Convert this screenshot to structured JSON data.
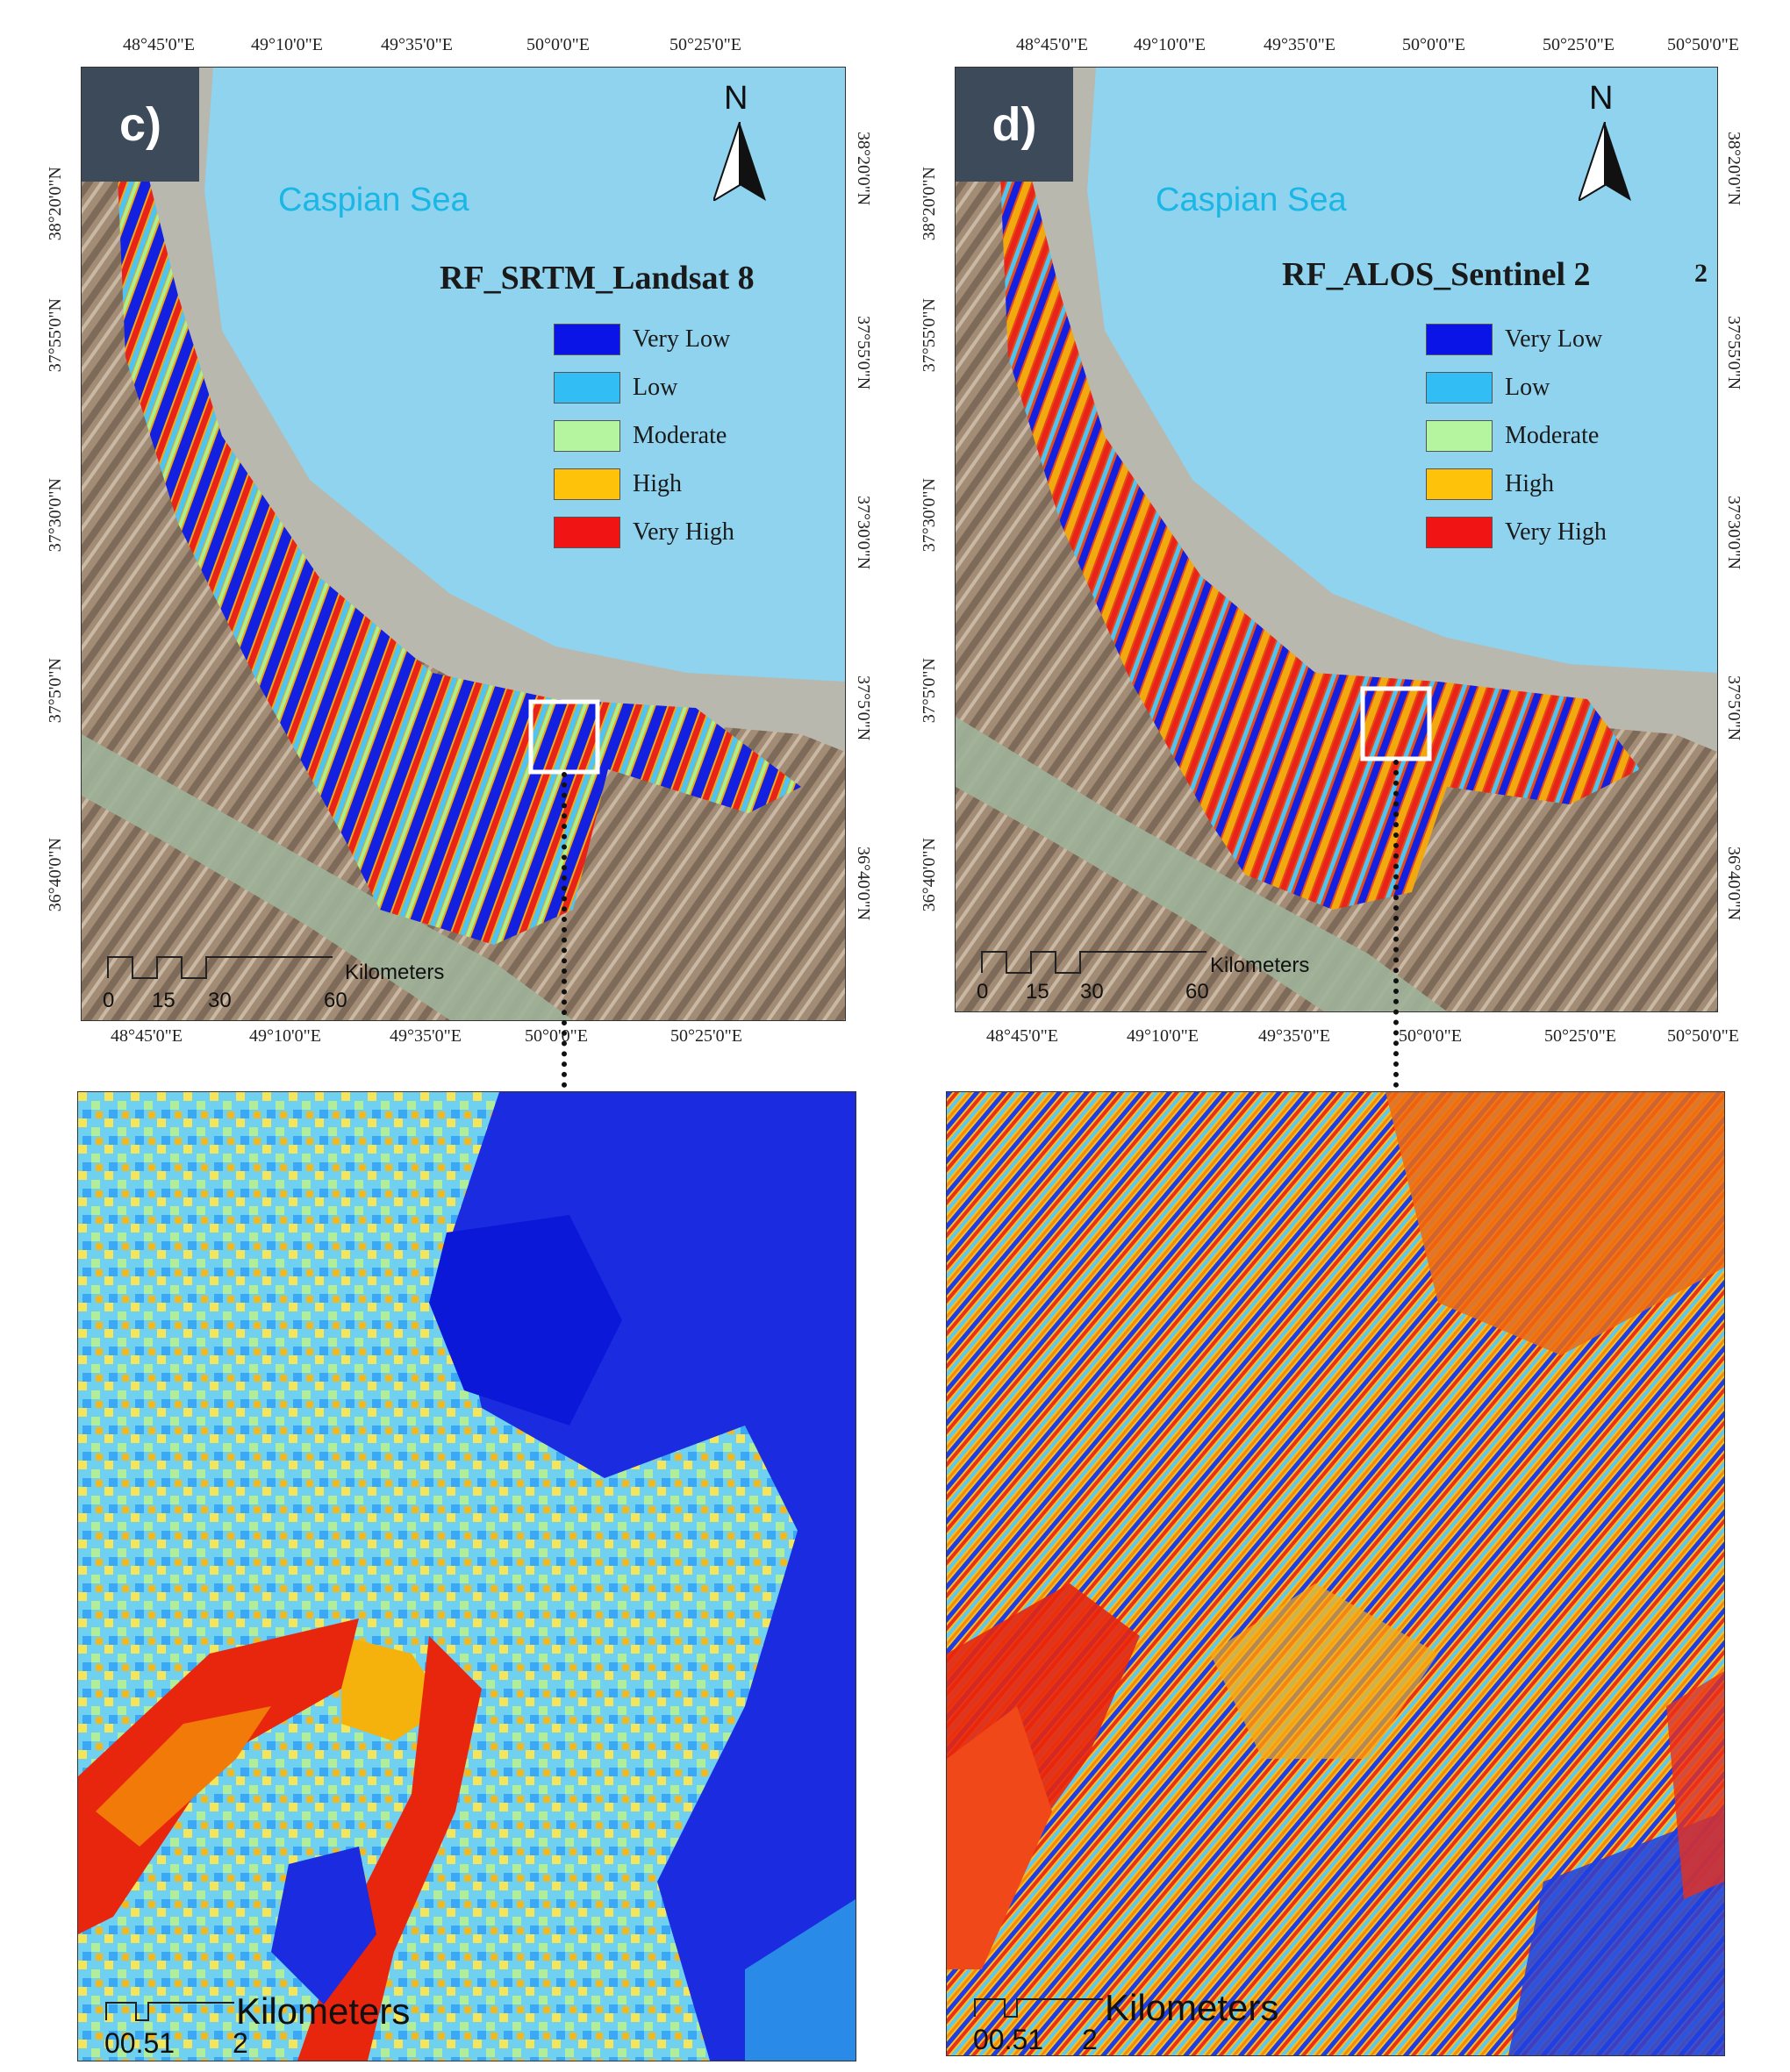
{
  "panels": [
    {
      "id": "c",
      "tag": "c)",
      "sea_label": "Caspian Sea",
      "title": "RF_SRTM_Landsat 8",
      "north_label": "N",
      "top_ticks": [
        "48°45'0\"E",
        "49°10'0\"E",
        "49°35'0\"E",
        "50°0'0\"E",
        "50°25'0\"E"
      ],
      "bottom_ticks": [
        "48°45'0\"E",
        "49°10'0\"E",
        "49°35'0\"E",
        "50°0'0\"E",
        "50°25'0\"E"
      ],
      "left_ticks": [
        "38°20'0\"N",
        "37°55'0\"N",
        "37°30'0\"N",
        "37°5'0\"N",
        "36°40'0\"N"
      ],
      "right_ticks": [
        "38°20'0\"N",
        "37°55'0\"N",
        "37°30'0\"N",
        "37°5'0\"N",
        "36°40'0\"N"
      ],
      "scale": {
        "unit": "Kilometers",
        "labels": [
          "0",
          "15",
          "30",
          "60"
        ]
      },
      "zoom_scale": {
        "unit": "Kilometers",
        "labels": [
          "00.51",
          "2"
        ]
      }
    },
    {
      "id": "d",
      "tag": "d)",
      "sea_label": "Caspian Sea",
      "title": "RF_ALOS_Sentinel 2",
      "title_extra": "2",
      "north_label": "N",
      "top_ticks": [
        "48°45'0\"E",
        "49°10'0\"E",
        "49°35'0\"E",
        "50°0'0\"E",
        "50°25'0\"E",
        "50°50'0\"E"
      ],
      "bottom_ticks": [
        "48°45'0\"E",
        "49°10'0\"E",
        "49°35'0\"E",
        "50°0'0\"E",
        "50°25'0\"E",
        "50°50'0\"E"
      ],
      "left_ticks": [
        "38°20'0\"N",
        "37°55'0\"N",
        "37°30'0\"N",
        "37°5'0\"N",
        "36°40'0\"N"
      ],
      "right_ticks": [
        "38°20'0\"N",
        "37°55'0\"N",
        "37°30'0\"N",
        "37°5'0\"N",
        "36°40'0\"N"
      ],
      "scale": {
        "unit": "Kilometers",
        "labels": [
          "0",
          "15",
          "30",
          "60"
        ]
      },
      "zoom_scale": {
        "unit": "Kilometers",
        "labels": [
          "00.51",
          "2"
        ]
      }
    }
  ],
  "legend": [
    {
      "label": "Very Low",
      "color": "#0a14e6"
    },
    {
      "label": "Low",
      "color": "#33bdf5"
    },
    {
      "label": "Moderate",
      "color": "#b6f5a0"
    },
    {
      "label": "High",
      "color": "#ffc20a"
    },
    {
      "label": "Very High",
      "color": "#f01414"
    }
  ],
  "colors": {
    "sea": "#8fd3ee",
    "coastal_plain": "#b8b8ae",
    "terrain": "#a8917a",
    "panel_tag_bg": "#3c4a5a"
  }
}
